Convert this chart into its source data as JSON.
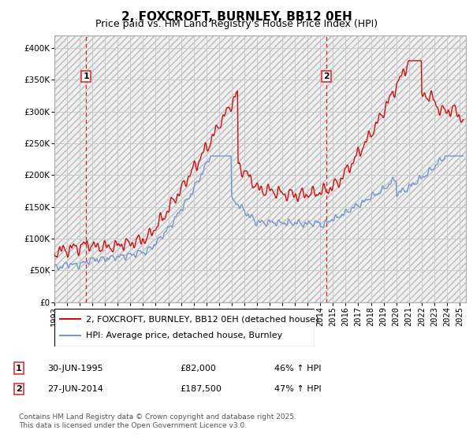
{
  "title": "2, FOXCROFT, BURNLEY, BB12 0EH",
  "subtitle": "Price paid vs. HM Land Registry's House Price Index (HPI)",
  "legend_line1": "2, FOXCROFT, BURNLEY, BB12 0EH (detached house)",
  "legend_line2": "HPI: Average price, detached house, Burnley",
  "footer1": "Contains HM Land Registry data © Crown copyright and database right 2025.",
  "footer2": "This data is licensed under the Open Government Licence v3.0.",
  "table_row1": [
    "1",
    "30-JUN-1995",
    "£82,000",
    "46% ↑ HPI"
  ],
  "table_row2": [
    "2",
    "27-JUN-2014",
    "£187,500",
    "47% ↑ HPI"
  ],
  "vline1_x": 1995.5,
  "vline2_x": 2014.5,
  "ylim": [
    0,
    420000
  ],
  "xlim": [
    1993.0,
    2025.5
  ],
  "hpi_color": "#7799cc",
  "price_color": "#cc1111",
  "vline_color": "#dd2222",
  "grid_color": "#cccccc",
  "title_fontsize": 11,
  "subtitle_fontsize": 9,
  "tick_fontsize": 7.5,
  "legend_fontsize": 8,
  "table_fontsize": 8,
  "footer_fontsize": 6.5
}
